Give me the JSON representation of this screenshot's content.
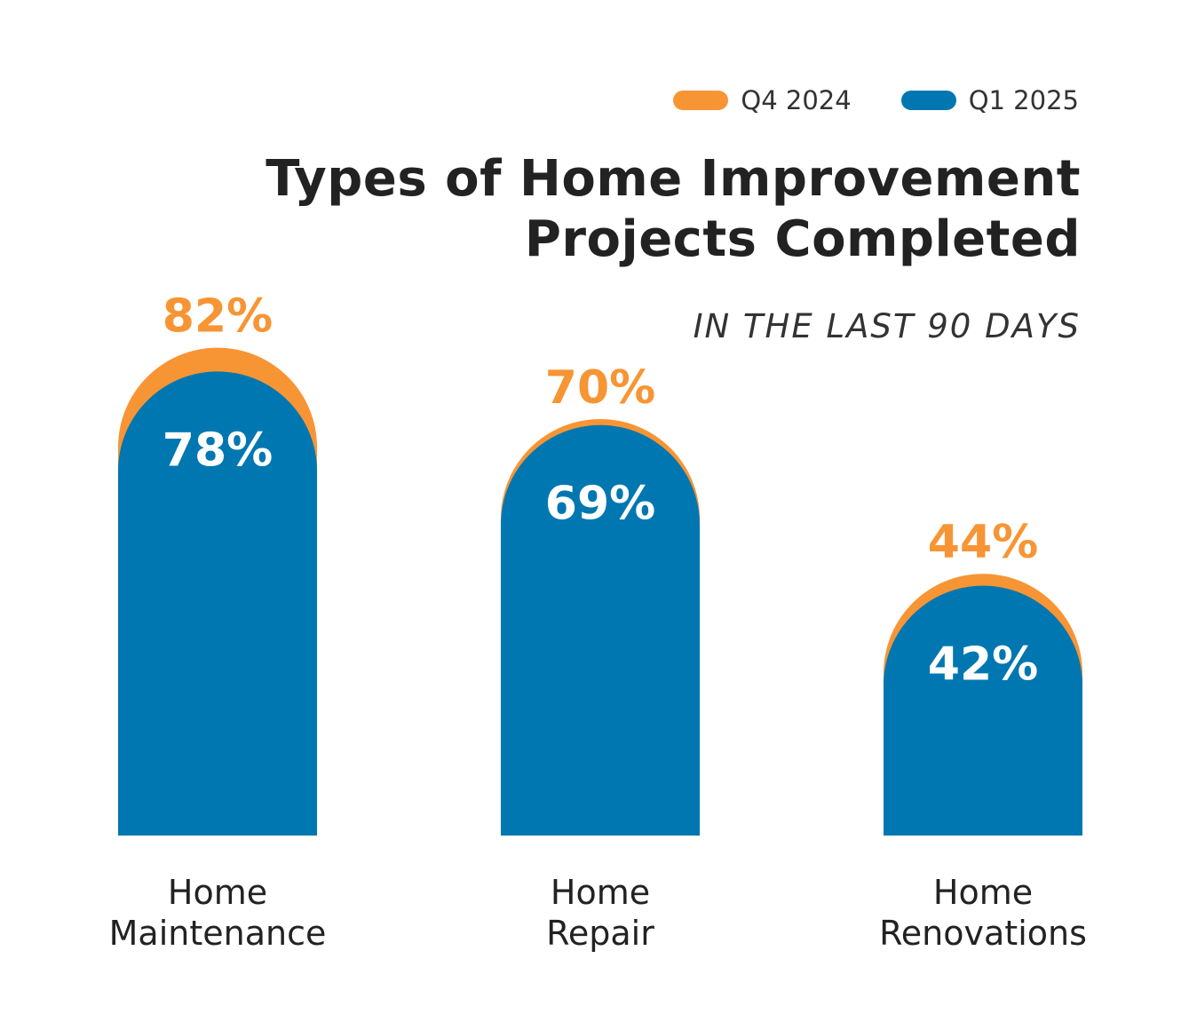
{
  "legend": {
    "items": [
      {
        "label": "Q4 2024",
        "color": "#F79534"
      },
      {
        "label": "Q1 2025",
        "color": "#0077B1"
      }
    ]
  },
  "header": {
    "title_line1": "Types of Home Improvement",
    "title_line2": "Projects Completed",
    "subtitle": "IN THE LAST 90 DAYS"
  },
  "chart_data": {
    "type": "bar",
    "title": "Types of Home Improvement Projects Completed",
    "subtitle": "IN THE LAST 90 DAYS",
    "categories": [
      [
        "Home",
        "Maintenance"
      ],
      [
        "Home",
        "Repair"
      ],
      [
        "Home",
        "Renovations"
      ]
    ],
    "series": [
      {
        "name": "Q4 2024",
        "values": [
          82,
          70,
          44
        ],
        "labels": [
          "82%",
          "70%",
          "44%"
        ],
        "color": "#F79534",
        "label_color": "#F79534"
      },
      {
        "name": "Q1 2025",
        "values": [
          78,
          69,
          42
        ],
        "labels": [
          "78%",
          "69%",
          "42%"
        ],
        "color": "#0077B1",
        "label_color": "#FFFFFF"
      }
    ],
    "legend_position": "top-right",
    "grid": false,
    "bar_shape": "rounded-top overlapping"
  }
}
